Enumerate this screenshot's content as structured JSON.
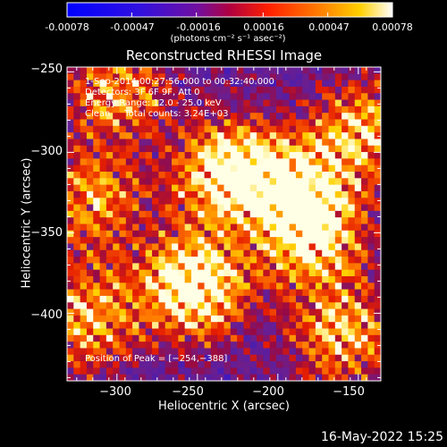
{
  "colorbar": {
    "tick_labels": [
      "-0.00078",
      "-0.00047",
      "-0.00016",
      "0.00016",
      "0.00047",
      "0.00078"
    ],
    "tick_values": [
      -0.00078,
      -0.00047,
      -0.00016,
      0.00016,
      0.00047,
      0.00078
    ],
    "units_label": "(photons cm⁻² s⁻¹ asec⁻²)",
    "colors": [
      "#0000ff",
      "#6020c0",
      "#a00030",
      "#ff4000",
      "#ffc000",
      "#ffffff"
    ]
  },
  "chart_data": {
    "type": "heatmap",
    "title": "Reconstructed RHESSI Image",
    "xlabel": "Heliocentric X (arcsec)",
    "ylabel": "Heliocentric Y (arcsec)",
    "xlim": [
      -331,
      -136
    ],
    "ylim": [
      -442,
      -247
    ],
    "x_ticks": [
      -300,
      -250,
      -200,
      -150
    ],
    "x_tick_labels": [
      "−300",
      "−250",
      "−200",
      "−150"
    ],
    "y_ticks": [
      -250,
      -300,
      -350,
      -400
    ],
    "y_tick_labels": [
      "−250",
      "−300",
      "−350",
      "−400"
    ],
    "annotations": [
      "1-Sep-2014 00:27:56.000 to 00:32:40.000",
      "Detectors: 3F 6F 9F, Att 0",
      "Energy Range: 12.0 - 25.0 keV",
      "Clean     Total counts: 3.24E+03"
    ],
    "peak_label": "Position of Peak = [−254,−388]",
    "peak_position": [
      -254,
      -388
    ],
    "bright_regions": [
      {
        "x": -252,
        "y": -382,
        "intensity": 0.00078
      },
      {
        "x": -232,
        "y": -312,
        "intensity": 0.0007
      },
      {
        "x": -192,
        "y": -322,
        "intensity": 0.0006
      },
      {
        "x": -178,
        "y": -352,
        "intensity": 0.0006
      },
      {
        "x": -148,
        "y": -288,
        "intensity": 0.0005
      },
      {
        "x": -318,
        "y": -402,
        "intensity": 0.0005
      },
      {
        "x": -300,
        "y": -262,
        "intensity": 0.00045
      },
      {
        "x": -160,
        "y": -412,
        "intensity": 0.0005
      },
      {
        "x": -315,
        "y": -330,
        "intensity": 0.00045
      }
    ]
  },
  "footer": {
    "timestamp": "16-May-2022 15:25"
  }
}
